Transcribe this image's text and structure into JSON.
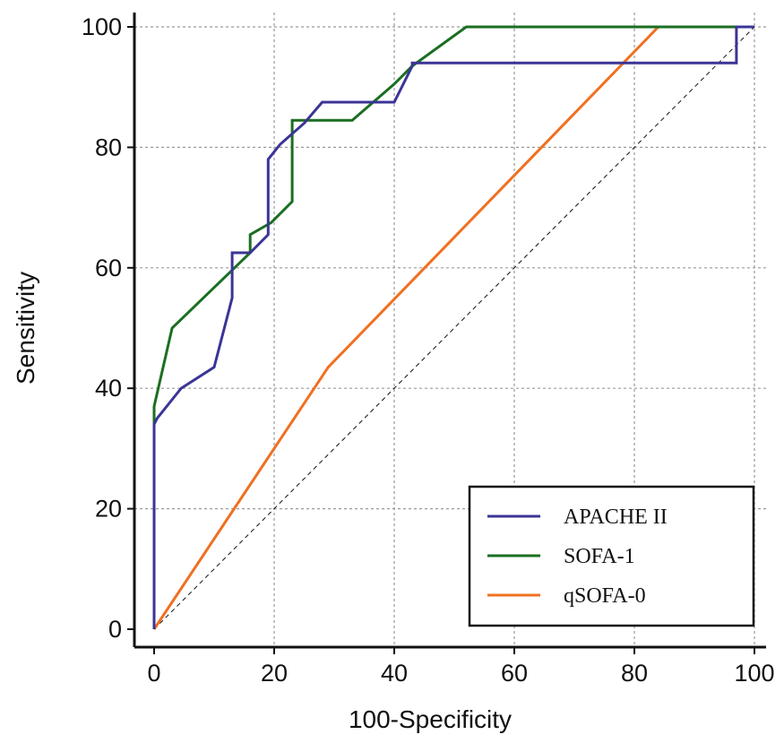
{
  "chart_data": {
    "type": "line",
    "title": "",
    "xlabel": "100-Specificity",
    "ylabel": "Sensitivity",
    "xlim": [
      0,
      100
    ],
    "ylim": [
      0,
      100
    ],
    "x_ticks": [
      "0",
      "20",
      "40",
      "60",
      "80",
      "100"
    ],
    "y_ticks": [
      "0",
      "20",
      "40",
      "60",
      "80",
      "100"
    ],
    "grid": true,
    "legend_position": "bottom-right",
    "reference_line": {
      "style": "dashed",
      "x": [
        0,
        100
      ],
      "y": [
        0,
        100
      ]
    },
    "series": [
      {
        "name": "APACHE II",
        "color": "#3b3496",
        "x": [
          0,
          0,
          0.5,
          4.5,
          10,
          13,
          13,
          13,
          16,
          19,
          19,
          21,
          25,
          28,
          40,
          43,
          43,
          97,
          97,
          100
        ],
        "y": [
          0,
          34,
          35,
          40,
          43.5,
          55,
          62.5,
          62.5,
          62.5,
          65.5,
          78,
          80.5,
          84,
          87.5,
          87.5,
          93.5,
          94,
          94,
          100,
          100
        ]
      },
      {
        "name": "SOFA-1",
        "color": "#1b6e21",
        "x": [
          0,
          0,
          3,
          16,
          16,
          19.5,
          23,
          23,
          33,
          40,
          43,
          52,
          100
        ],
        "y": [
          0,
          37,
          50,
          62.5,
          65.5,
          67.5,
          71,
          84.5,
          84.5,
          90.5,
          93.5,
          100,
          100
        ]
      },
      {
        "name": "qSOFA-0",
        "color": "#f07020",
        "x": [
          0,
          29,
          84,
          100
        ],
        "y": [
          0,
          43.5,
          100,
          100
        ]
      }
    ]
  }
}
